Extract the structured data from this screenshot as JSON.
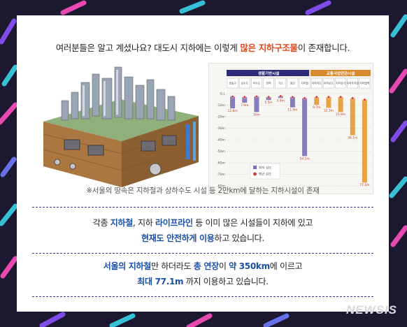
{
  "headline": {
    "before": "여러분들은 알고 계셨나요? 대도시 지하에는 이렇게 ",
    "highlight": "많은 지하구조물",
    "after": "이 존재합니다."
  },
  "caption": "※서울의 땅속은 지하철과 상하수도 시설 등 2만km에 달하는 지하시설이 존재",
  "paragraph1": {
    "line1": {
      "a": "각종 ",
      "b": "지하철",
      "c": ", 지하 ",
      "d": "라이프라인",
      "e": " 등 이미 많은 시설들이 지하에 있고"
    },
    "line2": {
      "a": "현재도 안전하게 이용",
      "b": "하고 있습니다."
    }
  },
  "paragraph2": {
    "line1": {
      "a": "서울의 지하철",
      "b": "만 하더라도 ",
      "c": "총 연장",
      "d": "이 ",
      "e": "약 350km",
      "f": "에 이르고"
    },
    "line2": {
      "a": "최대 77.1m",
      "b": " 까지 이용하고 있습니다."
    }
  },
  "watermark": "NEWSIS",
  "chart_data": {
    "type": "bar",
    "group_titles": [
      "생활기반시설",
      "교통사업연관시설"
    ],
    "categories": [
      "공동구",
      "상수도",
      "하수도",
      "전력",
      "가스",
      "통신",
      "지하철",
      "지하차도",
      "지하보도",
      "지하상가",
      "지하주차장",
      "지하철역"
    ],
    "min_depth": [
      2.6,
      3.0,
      2.5,
      3.0,
      2.2,
      3.0,
      4.0,
      3.0,
      3.0,
      3.0,
      4.0,
      5.3
    ],
    "max_depth": [
      12.8,
      7.9,
      16.0,
      5.5,
      3.9,
      11.9,
      54.1,
      9.7,
      12.3,
      15.9,
      36.1,
      77.1
    ],
    "y_ticks": [
      "G.L",
      "-10m",
      "-20m",
      "-30m",
      "-40m",
      "-50m",
      "-60m",
      "-70m",
      "-80m"
    ],
    "legend": [
      "최저 심도",
      "평균 심도"
    ],
    "colors": {
      "group1": "#7a6fb6",
      "group2": "#e39a35",
      "header1": "#2d2a7a",
      "header2": "#d98a2c"
    }
  }
}
